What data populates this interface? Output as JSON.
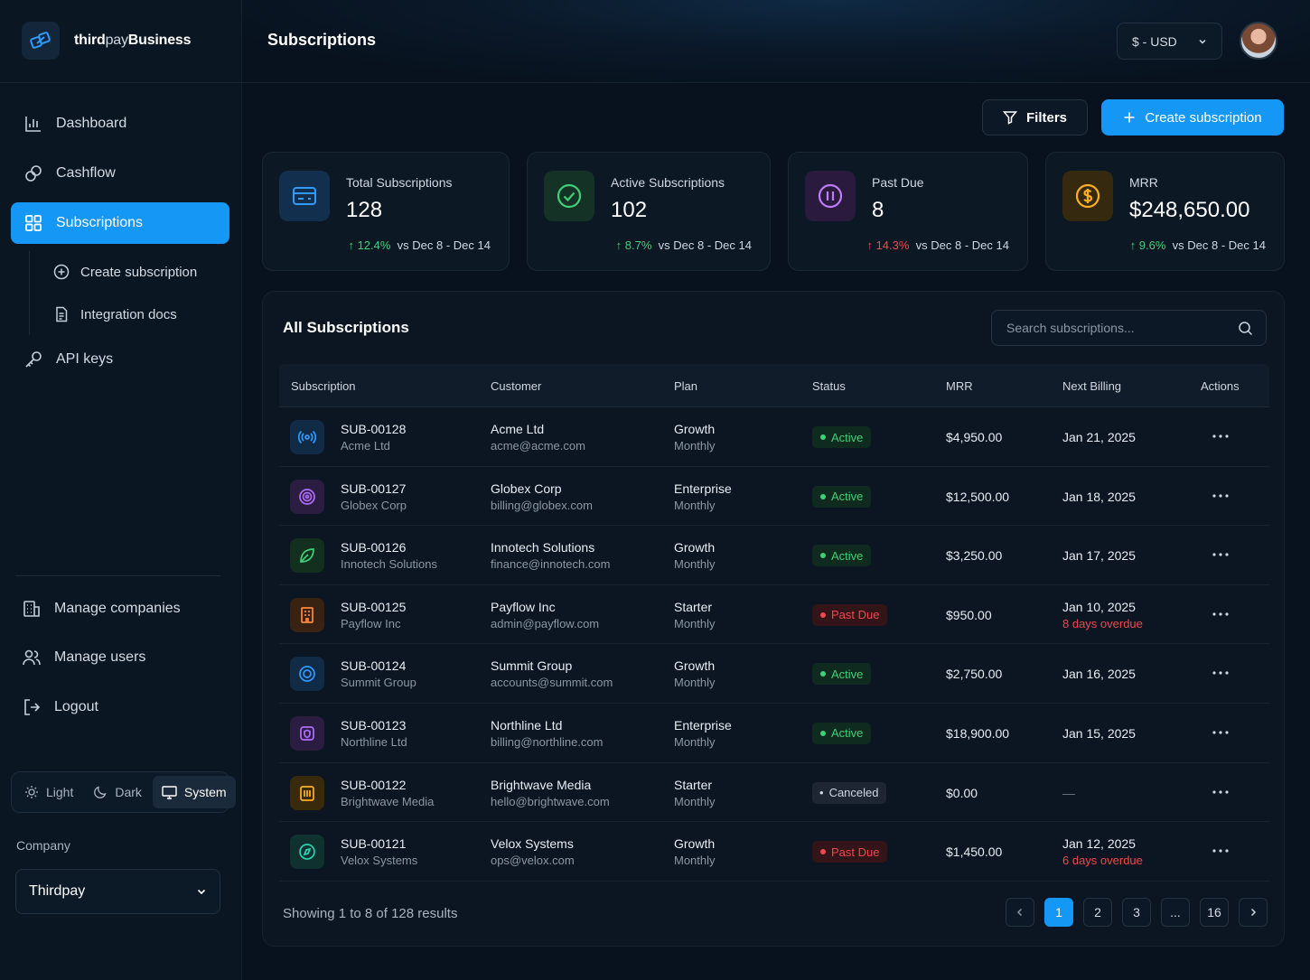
{
  "brand": {
    "name_prefix": "third",
    "name_mid": "pay",
    "name_suffix": "Business"
  },
  "nav": {
    "dashboard": "Dashboard",
    "cashflow": "Cashflow",
    "subscriptions": "Subscriptions",
    "create_subscription": "Create subscription",
    "integration_docs": "Integration docs",
    "api_keys": "API keys",
    "manage_companies": "Manage companies",
    "manage_users": "Manage users",
    "logout": "Logout"
  },
  "theme": {
    "light": "Light",
    "dark": "Dark",
    "system": "System",
    "selected": "System"
  },
  "company": {
    "label": "Company",
    "value": "Thirdpay"
  },
  "header": {
    "title": "Subscriptions",
    "currency": "$ - USD"
  },
  "toolbar": {
    "filters": "Filters",
    "create": "Create subscription"
  },
  "stats": [
    {
      "label": "Total Subscriptions",
      "value": "128",
      "delta": "12.4%",
      "direction": "up",
      "period": "vs Dec 8 - Dec 14"
    },
    {
      "label": "Active Subscriptions",
      "value": "102",
      "delta": "8.7%",
      "direction": "up",
      "period": "vs Dec 8 - Dec 14"
    },
    {
      "label": "Past Due",
      "value": "8",
      "delta": "14.3%",
      "direction": "up",
      "period": "vs Dec 8 - Dec 14"
    },
    {
      "label": "MRR",
      "value": "$248,650.00",
      "delta": "9.6%",
      "direction": "up",
      "period": "vs Dec 8 - Dec 14"
    }
  ],
  "table": {
    "title": "All Subscriptions",
    "search_placeholder": "Search subscriptions...",
    "columns": [
      "Subscription",
      "Customer",
      "Plan",
      "Status",
      "MRR",
      "Next Billing",
      "Actions"
    ],
    "rows": [
      {
        "id": "SUB-00128",
        "company": "Acme Ltd",
        "customer": "Acme Ltd",
        "email": "acme@acme.com",
        "plan": "Growth",
        "cycle": "Monthly",
        "status": "Active",
        "mrr": "$4,950.00",
        "next_billing": "Jan 21, 2025",
        "overdue": "",
        "icon": "broadcast-icon",
        "color": "#2f9bff"
      },
      {
        "id": "SUB-00127",
        "company": "Globex Corp",
        "customer": "Globex Corp",
        "email": "billing@globex.com",
        "plan": "Enterprise",
        "cycle": "Monthly",
        "status": "Active",
        "mrr": "$12,500.00",
        "next_billing": "Jan 18, 2025",
        "overdue": "",
        "icon": "target-icon",
        "color": "#b06cff"
      },
      {
        "id": "SUB-00126",
        "company": "Innotech Solutions",
        "customer": "Innotech Solutions",
        "email": "finance@innotech.com",
        "plan": "Growth",
        "cycle": "Monthly",
        "status": "Active",
        "mrr": "$3,250.00",
        "next_billing": "Jan 17, 2025",
        "overdue": "",
        "icon": "leaf-icon",
        "color": "#3fd177"
      },
      {
        "id": "SUB-00125",
        "company": "Payflow Inc",
        "customer": "Payflow Inc",
        "email": "admin@payflow.com",
        "plan": "Starter",
        "cycle": "Monthly",
        "status": "Past Due",
        "mrr": "$950.00",
        "next_billing": "Jan 10, 2025",
        "overdue": "8 days overdue",
        "icon": "building-icon",
        "color": "#ff8a3d"
      },
      {
        "id": "SUB-00124",
        "company": "Summit Group",
        "customer": "Summit Group",
        "email": "accounts@summit.com",
        "plan": "Growth",
        "cycle": "Monthly",
        "status": "Active",
        "mrr": "$2,750.00",
        "next_billing": "Jan 16, 2025",
        "overdue": "",
        "icon": "globe-icon",
        "color": "#2f9bff"
      },
      {
        "id": "SUB-00123",
        "company": "Northline Ltd",
        "customer": "Northline Ltd",
        "email": "billing@northline.com",
        "plan": "Enterprise",
        "cycle": "Monthly",
        "status": "Active",
        "mrr": "$18,900.00",
        "next_billing": "Jan 15, 2025",
        "overdue": "",
        "icon": "shield-icon",
        "color": "#b06cff"
      },
      {
        "id": "SUB-00122",
        "company": "Brightwave Media",
        "customer": "Brightwave Media",
        "email": "hello@brightwave.com",
        "plan": "Starter",
        "cycle": "Monthly",
        "status": "Canceled",
        "mrr": "$0.00",
        "next_billing": "—",
        "overdue": "",
        "icon": "stack-icon",
        "color": "#ffb020"
      },
      {
        "id": "SUB-00121",
        "company": "Velox Systems",
        "customer": "Velox Systems",
        "email": "ops@velox.com",
        "plan": "Growth",
        "cycle": "Monthly",
        "status": "Past Due",
        "mrr": "$1,450.00",
        "next_billing": "Jan 12, 2025",
        "overdue": "6 days overdue",
        "icon": "compass-icon",
        "color": "#2ad1b0"
      }
    ],
    "showing": "Showing 1 to 8 of 128 results",
    "pages": [
      "1",
      "2",
      "3",
      "...",
      "16"
    ],
    "current_page": "1"
  },
  "colors": {
    "accent": "#1597f5",
    "success": "#3fd177",
    "danger": "#f0484d",
    "background": "#08121e"
  }
}
